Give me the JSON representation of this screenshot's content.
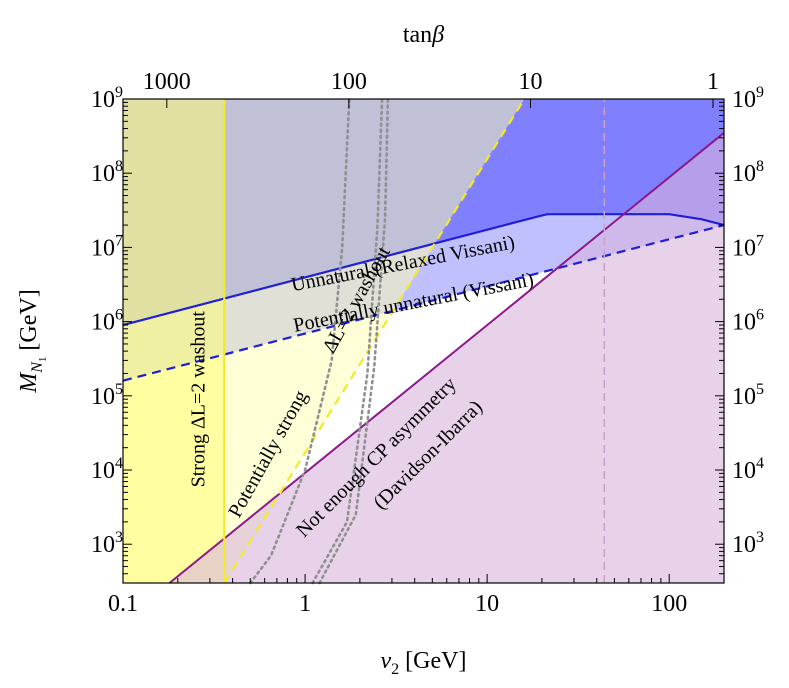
{
  "chart_data": {
    "type": "area",
    "title": "",
    "xlabel_symbol": "v",
    "xlabel_sub": "2",
    "xlabel_unit": "[GeV]",
    "ylabel_symbol": "M",
    "ylabel_sub1": "N",
    "ylabel_sub2": "1",
    "ylabel_unit": "[GeV]",
    "top_axis_label_prefix": "tan",
    "top_axis_label_symbol": "β",
    "xscale": "log",
    "yscale": "log",
    "xlim": [
      0.1,
      200
    ],
    "ylim": [
      300,
      1000000000
    ],
    "grid": false,
    "x_ticks": [
      {
        "value": 0.1,
        "label": "0.1"
      },
      {
        "value": 1,
        "label": "1"
      },
      {
        "value": 10,
        "label": "10"
      },
      {
        "value": 100,
        "label": "100"
      }
    ],
    "top_ticks": [
      {
        "v2": 0.174,
        "label": "1000"
      },
      {
        "v2": 1.74,
        "label": "100"
      },
      {
        "v2": 17.3,
        "label": "10"
      },
      {
        "v2": 174,
        "label": "1"
      }
    ],
    "y_ticks": [
      {
        "exp": 3,
        "base": "10",
        "sup": "3"
      },
      {
        "exp": 4,
        "base": "10",
        "sup": "4"
      },
      {
        "exp": 5,
        "base": "10",
        "sup": "5"
      },
      {
        "exp": 6,
        "base": "10",
        "sup": "6"
      },
      {
        "exp": 7,
        "base": "10",
        "sup": "7"
      },
      {
        "exp": 8,
        "base": "10",
        "sup": "8"
      },
      {
        "exp": 9,
        "base": "10",
        "sup": "9"
      }
    ],
    "regions": [
      {
        "name": "Unnatural (Relaxed Vissani)",
        "color": "#8080ff",
        "boundary": [
          [
            0.1,
            900000
          ],
          [
            20,
            27000000
          ],
          [
            21.5,
            28000000
          ],
          [
            100,
            28000000
          ],
          [
            150,
            24000000
          ],
          [
            200,
            20000000
          ]
        ]
      },
      {
        "name": "Potentially unnatural (Vissani)",
        "color": "#c0c0ff",
        "boundary": [
          [
            0.1,
            160000
          ],
          [
            200,
            20000000
          ]
        ]
      },
      {
        "name": "Not enough CP asymmetry (Davidson-Ibarra)",
        "color": "#d8b4dc",
        "boundary": [
          [
            0.18,
            300
          ],
          [
            200,
            350000000
          ]
        ]
      },
      {
        "name": "Strong ΔL=2 washout",
        "color": "#ffff6e",
        "v2_max": 0.36
      },
      {
        "name": "Potentially strong ΔL=2 washout",
        "color": "#ffffb0",
        "boundary": [
          [
            0.36,
            300
          ],
          [
            16,
            1000000000
          ]
        ]
      }
    ],
    "dotted_curves": [
      {
        "color": "#909090",
        "points": [
          [
            0.5,
            300
          ],
          [
            0.65,
            700
          ],
          [
            1.0,
            10000
          ],
          [
            1.4,
            300000
          ],
          [
            1.6,
            10000000
          ],
          [
            1.75,
            1000000000
          ]
        ]
      },
      {
        "color": "#909090",
        "points": [
          [
            1.1,
            300
          ],
          [
            1.7,
            2000
          ],
          [
            2.2,
            200000
          ],
          [
            2.5,
            20000000
          ],
          [
            2.65,
            1000000000
          ]
        ]
      },
      {
        "color": "#909090",
        "points": [
          [
            1.2,
            300
          ],
          [
            1.9,
            2500
          ],
          [
            2.4,
            250000
          ],
          [
            2.75,
            25000000
          ],
          [
            2.85,
            1000000000
          ]
        ]
      }
    ],
    "vertical_dashed_x": 44,
    "annotations": [
      {
        "text": "Unnatural (Relaxed Vissani)",
        "x": 3.5,
        "y": 5000000,
        "angle": -11
      },
      {
        "text": "Potentially unnatural (Vissani)",
        "x": 4.0,
        "y": 1500000,
        "angle": -11
      },
      {
        "text": "Not enough CP asymmetry",
        "x": 2.6,
        "y": 13000,
        "angle": -45
      },
      {
        "text": "(Davidson-Ibarra)",
        "x": 5.0,
        "y": 14000,
        "angle": -45
      },
      {
        "text": "Strong ΔL=2 washout",
        "x": 0.28,
        "y": 90000,
        "angle": -90
      },
      {
        "text": "Potentially strong",
        "x": 0.67,
        "y": 15000,
        "angle": -61
      },
      {
        "text": "ΔL=2 washout",
        "x": 2.05,
        "y": 1800000,
        "angle": -61
      }
    ]
  }
}
